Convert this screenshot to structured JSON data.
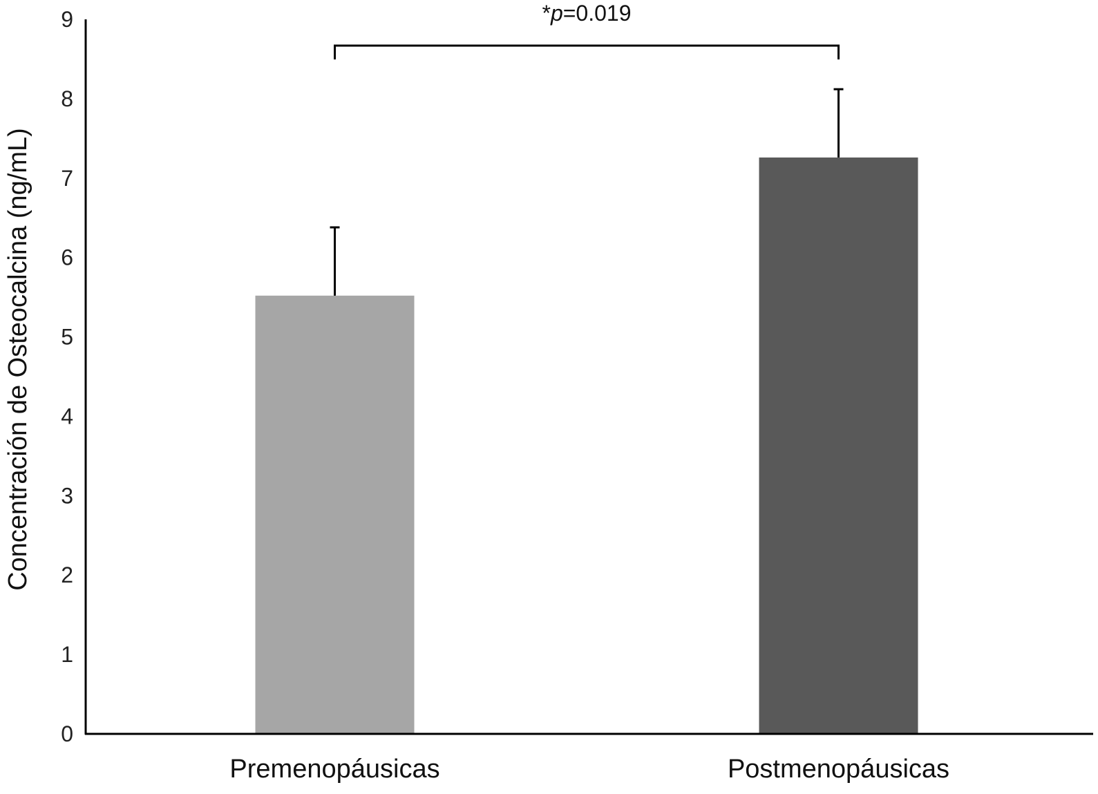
{
  "chart_data": {
    "type": "bar",
    "categories": [
      "Premenopáusicas",
      "Postmenopáusicas"
    ],
    "values": [
      5.52,
      7.26
    ],
    "error_bars": [
      0.86,
      0.86
    ],
    "colors": [
      "#a6a6a6",
      "#595959"
    ],
    "title": "",
    "xlabel": "",
    "ylabel": "Concentración de Osteocalcina (ng/mL)",
    "ylim": [
      0,
      9
    ],
    "yticks": [
      0,
      1,
      2,
      3,
      4,
      5,
      6,
      7,
      8,
      9
    ],
    "grid": false,
    "annotation": {
      "star": "*",
      "p_symbol": "p",
      "value_text": "=0.019",
      "between": [
        "Premenopáusicas",
        "Postmenopáusicas"
      ]
    }
  }
}
